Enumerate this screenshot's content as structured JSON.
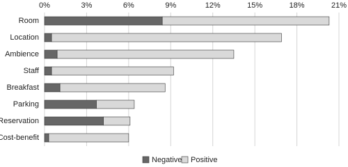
{
  "chart_data": {
    "type": "stacked-barh",
    "categories": [
      "Room",
      "Location",
      "Ambience",
      "Staff",
      "Breakfast",
      "Parking",
      "Reservation",
      "Cost-benefit"
    ],
    "series": [
      {
        "name": "Negative",
        "color": "#666666",
        "values": [
          8.4,
          0.5,
          0.9,
          0.5,
          1.1,
          3.7,
          4.2,
          0.3
        ]
      },
      {
        "name": "Positive",
        "color": "#d9d9d9",
        "values": [
          11.9,
          16.4,
          12.6,
          8.7,
          7.5,
          2.7,
          1.9,
          5.7
        ]
      }
    ],
    "xlim": [
      0,
      21
    ],
    "xticks": [
      {
        "value": 0,
        "label": "0%"
      },
      {
        "value": 3,
        "label": "3%"
      },
      {
        "value": 6,
        "label": "6%"
      },
      {
        "value": 9,
        "label": "9%"
      },
      {
        "value": 12,
        "label": "12%"
      },
      {
        "value": 15,
        "label": "15%"
      },
      {
        "value": 18,
        "label": "18%"
      },
      {
        "value": 21,
        "label": "21%"
      }
    ],
    "grid": true,
    "legend": "bottom"
  }
}
